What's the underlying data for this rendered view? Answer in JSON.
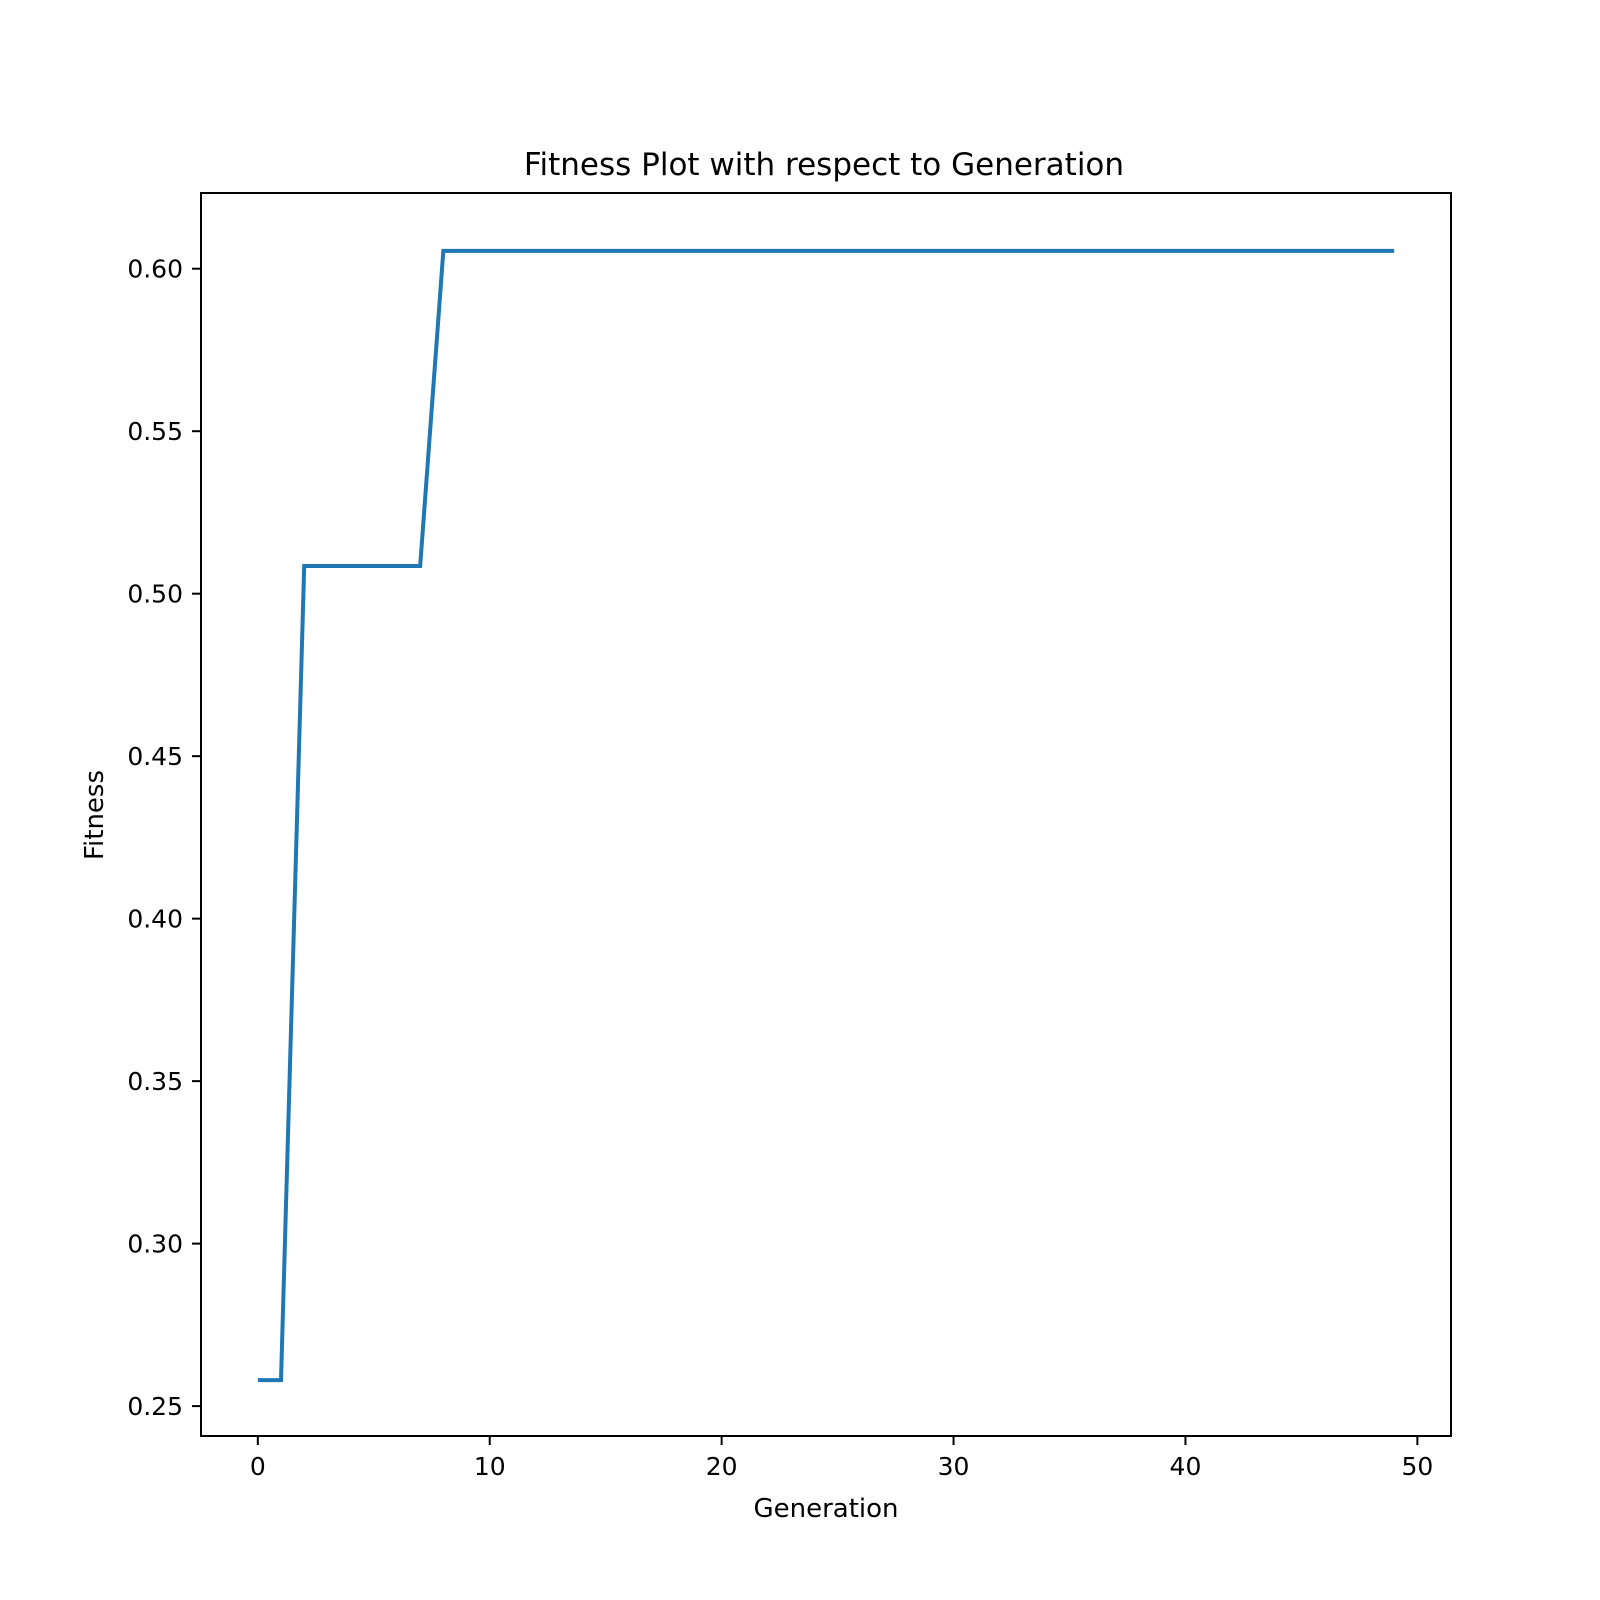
{
  "chart_data": {
    "type": "line",
    "title": "Fitness Plot with respect to Generation",
    "xlabel": "Generation",
    "ylabel": "Fitness",
    "xlim": [
      -2.45,
      51.45
    ],
    "ylim": [
      0.2408,
      0.6233
    ],
    "xticks": [
      0,
      10,
      20,
      30,
      40,
      50
    ],
    "xtick_labels": [
      "0",
      "10",
      "20",
      "30",
      "40",
      "50"
    ],
    "yticks": [
      0.25,
      0.3,
      0.35,
      0.4,
      0.45,
      0.5,
      0.55,
      0.6
    ],
    "ytick_labels": [
      "0.25",
      "0.30",
      "0.35",
      "0.40",
      "0.45",
      "0.50",
      "0.55",
      "0.60"
    ],
    "grid": false,
    "legend": "none",
    "series": [
      {
        "color": "#1f77b4",
        "x": [
          0,
          1,
          2,
          3,
          4,
          5,
          6,
          7,
          8,
          9,
          10,
          11,
          12,
          13,
          14,
          15,
          16,
          17,
          18,
          19,
          20,
          21,
          22,
          23,
          24,
          25,
          26,
          27,
          28,
          29,
          30,
          31,
          32,
          33,
          34,
          35,
          36,
          37,
          38,
          39,
          40,
          41,
          42,
          43,
          44,
          45,
          46,
          47,
          48,
          49
        ],
        "y": [
          0.258,
          0.258,
          0.5085,
          0.5085,
          0.5085,
          0.5085,
          0.5085,
          0.5085,
          0.6055,
          0.6055,
          0.6055,
          0.6055,
          0.6055,
          0.6055,
          0.6055,
          0.6055,
          0.6055,
          0.6055,
          0.6055,
          0.6055,
          0.6055,
          0.6055,
          0.6055,
          0.6055,
          0.6055,
          0.6055,
          0.6055,
          0.6055,
          0.6055,
          0.6055,
          0.6055,
          0.6055,
          0.6055,
          0.6055,
          0.6055,
          0.6055,
          0.6055,
          0.6055,
          0.6055,
          0.6055,
          0.6055,
          0.6055,
          0.6055,
          0.6055,
          0.6055,
          0.6055,
          0.6055,
          0.6055,
          0.6055,
          0.6055
        ]
      }
    ]
  }
}
